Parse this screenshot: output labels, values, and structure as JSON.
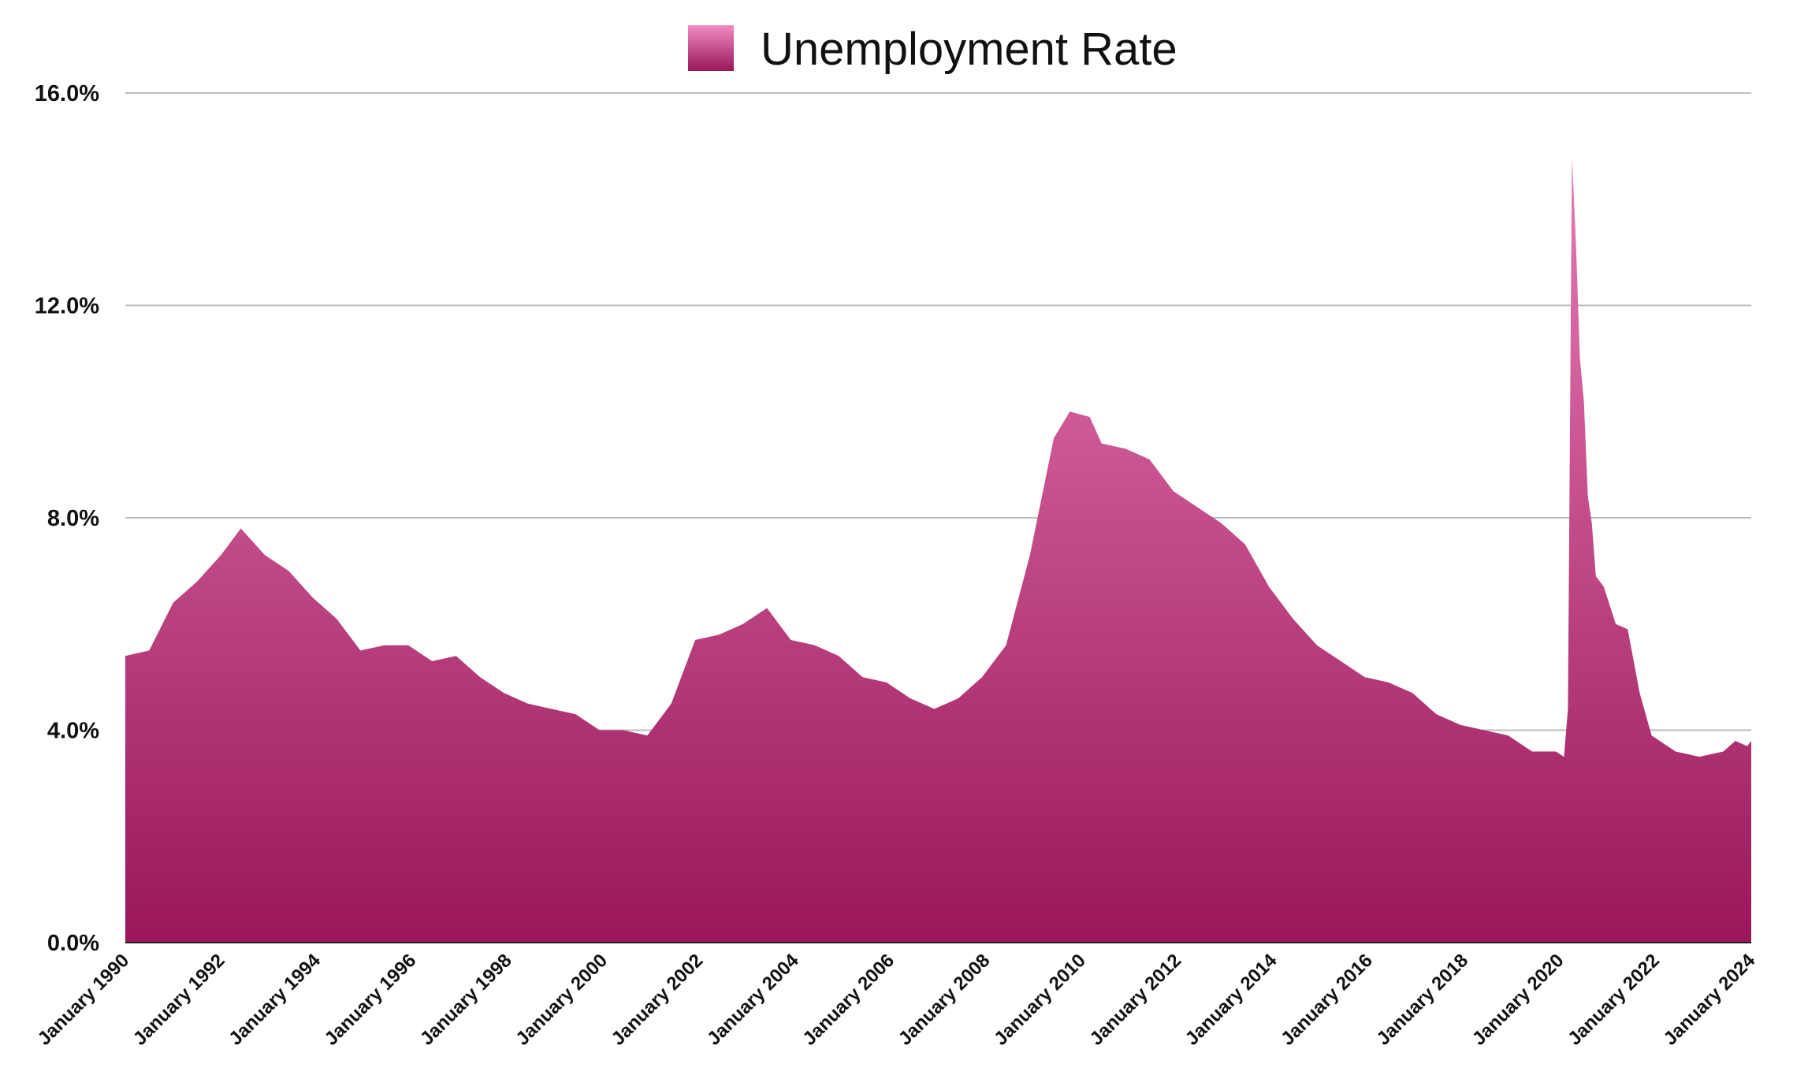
{
  "chart_data": {
    "type": "area",
    "title": "",
    "xlabel": "",
    "ylabel": "",
    "x_range": [
      "January 1990",
      "January 2024"
    ],
    "ylim": [
      0,
      16
    ],
    "y_ticks": [
      0,
      4,
      8,
      12,
      16
    ],
    "y_tick_labels": [
      "0.0%",
      "4.0%",
      "8.0%",
      "12.0%",
      "16.0%"
    ],
    "x_tick_labels": [
      "January 1990",
      "January 1992",
      "January 1994",
      "January 1996",
      "January 1998",
      "January 2000",
      "January 2002",
      "January 2004",
      "January 2006",
      "January 2008",
      "January 2010",
      "January 2012",
      "January 2014",
      "January 2016",
      "January 2018",
      "January 2020",
      "January 2022",
      "January 2024"
    ],
    "grid": true,
    "legend_position": "top-center",
    "colors": {
      "fill_top": "#e77bb4",
      "fill_bottom": "#99175a"
    },
    "series": [
      {
        "name": "Unemployment Rate",
        "points": [
          [
            "1990-01",
            5.4
          ],
          [
            "1990-07",
            5.5
          ],
          [
            "1991-01",
            6.4
          ],
          [
            "1991-07",
            6.8
          ],
          [
            "1992-01",
            7.3
          ],
          [
            "1992-06",
            7.8
          ],
          [
            "1992-12",
            7.3
          ],
          [
            "1993-06",
            7.0
          ],
          [
            "1993-12",
            6.5
          ],
          [
            "1994-06",
            6.1
          ],
          [
            "1994-12",
            5.5
          ],
          [
            "1995-06",
            5.6
          ],
          [
            "1995-12",
            5.6
          ],
          [
            "1996-06",
            5.3
          ],
          [
            "1996-12",
            5.4
          ],
          [
            "1997-06",
            5.0
          ],
          [
            "1997-12",
            4.7
          ],
          [
            "1998-06",
            4.5
          ],
          [
            "1998-12",
            4.4
          ],
          [
            "1999-06",
            4.3
          ],
          [
            "1999-12",
            4.0
          ],
          [
            "2000-06",
            4.0
          ],
          [
            "2000-12",
            3.9
          ],
          [
            "2001-06",
            4.5
          ],
          [
            "2001-12",
            5.7
          ],
          [
            "2002-06",
            5.8
          ],
          [
            "2002-12",
            6.0
          ],
          [
            "2003-06",
            6.3
          ],
          [
            "2003-12",
            5.7
          ],
          [
            "2004-06",
            5.6
          ],
          [
            "2004-12",
            5.4
          ],
          [
            "2005-06",
            5.0
          ],
          [
            "2005-12",
            4.9
          ],
          [
            "2006-06",
            4.6
          ],
          [
            "2006-12",
            4.4
          ],
          [
            "2007-06",
            4.6
          ],
          [
            "2007-12",
            5.0
          ],
          [
            "2008-06",
            5.6
          ],
          [
            "2008-12",
            7.3
          ],
          [
            "2009-06",
            9.5
          ],
          [
            "2009-10",
            10.0
          ],
          [
            "2010-03",
            9.9
          ],
          [
            "2010-06",
            9.4
          ],
          [
            "2010-12",
            9.3
          ],
          [
            "2011-06",
            9.1
          ],
          [
            "2011-12",
            8.5
          ],
          [
            "2012-06",
            8.2
          ],
          [
            "2012-12",
            7.9
          ],
          [
            "2013-06",
            7.5
          ],
          [
            "2013-12",
            6.7
          ],
          [
            "2014-06",
            6.1
          ],
          [
            "2014-12",
            5.6
          ],
          [
            "2015-06",
            5.3
          ],
          [
            "2015-12",
            5.0
          ],
          [
            "2016-06",
            4.9
          ],
          [
            "2016-12",
            4.7
          ],
          [
            "2017-06",
            4.3
          ],
          [
            "2017-12",
            4.1
          ],
          [
            "2018-06",
            4.0
          ],
          [
            "2018-12",
            3.9
          ],
          [
            "2019-06",
            3.6
          ],
          [
            "2019-12",
            3.6
          ],
          [
            "2020-02",
            3.5
          ],
          [
            "2020-03",
            4.4
          ],
          [
            "2020-04",
            14.8
          ],
          [
            "2020-05",
            13.2
          ],
          [
            "2020-06",
            11.0
          ],
          [
            "2020-07",
            10.2
          ],
          [
            "2020-08",
            8.4
          ],
          [
            "2020-09",
            7.9
          ],
          [
            "2020-10",
            6.9
          ],
          [
            "2020-12",
            6.7
          ],
          [
            "2021-03",
            6.0
          ],
          [
            "2021-06",
            5.9
          ],
          [
            "2021-09",
            4.7
          ],
          [
            "2021-12",
            3.9
          ],
          [
            "2022-06",
            3.6
          ],
          [
            "2022-12",
            3.5
          ],
          [
            "2023-06",
            3.6
          ],
          [
            "2023-09",
            3.8
          ],
          [
            "2023-12",
            3.7
          ],
          [
            "2024-01",
            3.8
          ]
        ]
      }
    ]
  }
}
